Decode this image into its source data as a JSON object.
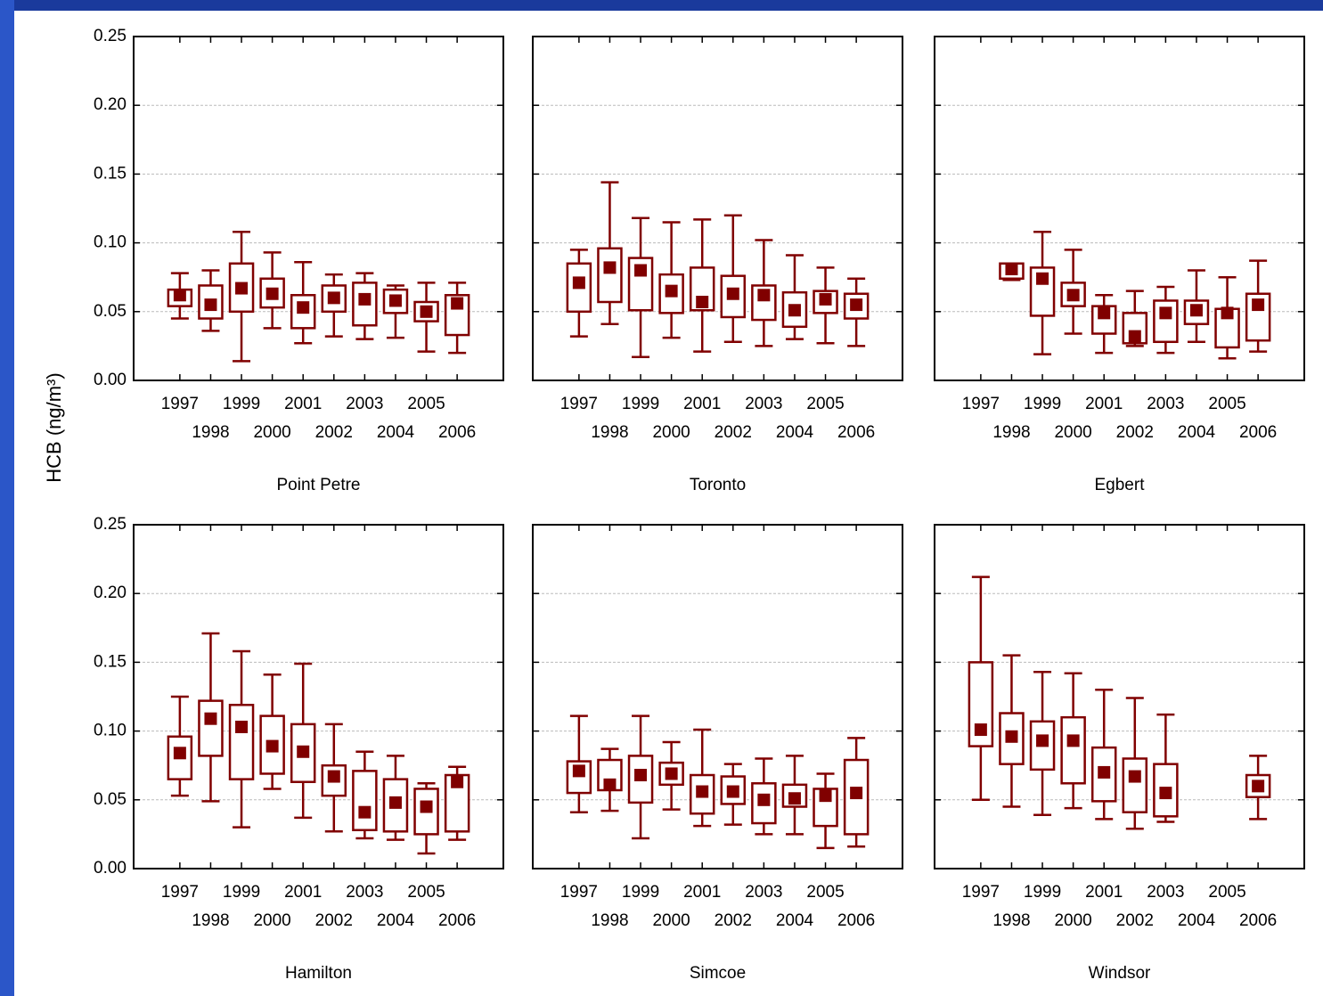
{
  "y_label": "HCB (ng/m³)",
  "chart_data": [
    {
      "type": "box",
      "title": "Point Petre",
      "color": "#800000",
      "grid": true,
      "categories": [
        "1997",
        "1998",
        "1999",
        "2000",
        "2001",
        "2002",
        "2003",
        "2004",
        "2005",
        "2006"
      ],
      "ylim": [
        0,
        0.25
      ],
      "yticks": [
        {
          "value": 0,
          "label": "0.00"
        },
        {
          "value": 0.05,
          "label": "0.05"
        },
        {
          "value": 0.1,
          "label": "0.10"
        },
        {
          "value": 0.15,
          "label": "0.15"
        },
        {
          "value": 0.2,
          "label": "0.20"
        },
        {
          "value": 0.25,
          "label": "0.25"
        }
      ],
      "low": [
        0.045,
        0.036,
        0.014,
        0.038,
        0.027,
        0.032,
        0.03,
        0.031,
        0.021,
        0.02
      ],
      "q1": [
        0.054,
        0.045,
        0.05,
        0.053,
        0.038,
        0.05,
        0.04,
        0.049,
        0.043,
        0.033
      ],
      "mid": [
        0.062,
        0.055,
        0.067,
        0.063,
        0.053,
        0.06,
        0.059,
        0.058,
        0.05,
        0.056
      ],
      "q3": [
        0.066,
        0.069,
        0.085,
        0.074,
        0.062,
        0.069,
        0.071,
        0.066,
        0.057,
        0.062
      ],
      "high": [
        0.078,
        0.08,
        0.108,
        0.093,
        0.086,
        0.077,
        0.078,
        0.069,
        0.071,
        0.071
      ]
    },
    {
      "type": "box",
      "title": "Toronto",
      "color": "#800000",
      "grid": true,
      "categories": [
        "1997",
        "1998",
        "1999",
        "2000",
        "2001",
        "2002",
        "2003",
        "2004",
        "2005",
        "2006"
      ],
      "ylim": [
        0,
        0.25
      ],
      "yticks": [
        0,
        0.05,
        0.1,
        0.15,
        0.2,
        0.25
      ],
      "low": [
        0.032,
        0.041,
        0.017,
        0.031,
        0.021,
        0.028,
        0.025,
        0.03,
        0.027,
        0.025
      ],
      "q1": [
        0.05,
        0.057,
        0.051,
        0.049,
        0.051,
        0.046,
        0.044,
        0.039,
        0.049,
        0.045
      ],
      "mid": [
        0.071,
        0.082,
        0.08,
        0.065,
        0.057,
        0.063,
        0.062,
        0.051,
        0.059,
        0.055
      ],
      "q3": [
        0.085,
        0.096,
        0.089,
        0.077,
        0.082,
        0.076,
        0.069,
        0.064,
        0.065,
        0.063
      ],
      "high": [
        0.095,
        0.144,
        0.118,
        0.115,
        0.117,
        0.12,
        0.102,
        0.091,
        0.082,
        0.074
      ]
    },
    {
      "type": "box",
      "title": "Egbert",
      "color": "#800000",
      "grid": true,
      "categories": [
        "1997",
        "1998",
        "1999",
        "2000",
        "2001",
        "2002",
        "2003",
        "2004",
        "2005",
        "2006"
      ],
      "ylim": [
        0,
        0.25
      ],
      "yticks": [
        0,
        0.05,
        0.1,
        0.15,
        0.2,
        0.25
      ],
      "low": [
        null,
        0.073,
        0.019,
        0.034,
        0.02,
        0.025,
        0.02,
        0.028,
        0.016,
        0.021
      ],
      "q1": [
        null,
        0.074,
        0.047,
        0.054,
        0.034,
        0.027,
        0.028,
        0.041,
        0.024,
        0.029
      ],
      "mid": [
        null,
        0.081,
        0.074,
        0.062,
        0.049,
        0.032,
        0.049,
        0.051,
        0.049,
        0.055
      ],
      "q3": [
        null,
        0.085,
        0.082,
        0.071,
        0.054,
        0.049,
        0.058,
        0.058,
        0.052,
        0.063
      ],
      "high": [
        null,
        0.085,
        0.108,
        0.095,
        0.062,
        0.065,
        0.068,
        0.08,
        0.075,
        0.087
      ]
    },
    {
      "type": "box",
      "title": "Hamilton",
      "color": "#800000",
      "grid": true,
      "categories": [
        "1997",
        "1998",
        "1999",
        "2000",
        "2001",
        "2002",
        "2003",
        "2004",
        "2005",
        "2006"
      ],
      "ylim": [
        0,
        0.25
      ],
      "yticks": [
        {
          "value": 0,
          "label": "0.00"
        },
        {
          "value": 0.05,
          "label": "0.05"
        },
        {
          "value": 0.1,
          "label": "0.10"
        },
        {
          "value": 0.15,
          "label": "0.15"
        },
        {
          "value": 0.2,
          "label": "0.20"
        },
        {
          "value": 0.25,
          "label": "0.25"
        }
      ],
      "low": [
        0.053,
        0.049,
        0.03,
        0.058,
        0.037,
        0.027,
        0.022,
        0.021,
        0.011,
        0.021
      ],
      "q1": [
        0.065,
        0.082,
        0.065,
        0.069,
        0.063,
        0.053,
        0.028,
        0.027,
        0.025,
        0.027
      ],
      "mid": [
        0.084,
        0.109,
        0.103,
        0.089,
        0.085,
        0.067,
        0.041,
        0.048,
        0.045,
        0.063
      ],
      "q3": [
        0.096,
        0.122,
        0.119,
        0.111,
        0.105,
        0.075,
        0.071,
        0.065,
        0.058,
        0.068
      ],
      "high": [
        0.125,
        0.171,
        0.158,
        0.141,
        0.149,
        0.105,
        0.085,
        0.082,
        0.062,
        0.074
      ]
    },
    {
      "type": "box",
      "title": "Simcoe",
      "color": "#800000",
      "grid": true,
      "categories": [
        "1997",
        "1998",
        "1999",
        "2000",
        "2001",
        "2002",
        "2003",
        "2004",
        "2005",
        "2006"
      ],
      "ylim": [
        0,
        0.25
      ],
      "yticks": [
        0,
        0.05,
        0.1,
        0.15,
        0.2,
        0.25
      ],
      "low": [
        0.041,
        0.042,
        0.022,
        0.043,
        0.031,
        0.032,
        0.025,
        0.025,
        0.015,
        0.016
      ],
      "q1": [
        0.055,
        0.057,
        0.048,
        0.061,
        0.04,
        0.047,
        0.033,
        0.045,
        0.031,
        0.025
      ],
      "mid": [
        0.071,
        0.061,
        0.068,
        0.069,
        0.056,
        0.056,
        0.05,
        0.051,
        0.053,
        0.055
      ],
      "q3": [
        0.078,
        0.079,
        0.082,
        0.077,
        0.068,
        0.067,
        0.062,
        0.061,
        0.058,
        0.079
      ],
      "high": [
        0.111,
        0.087,
        0.111,
        0.092,
        0.101,
        0.076,
        0.08,
        0.082,
        0.069,
        0.095
      ]
    },
    {
      "type": "box",
      "title": "Windsor",
      "color": "#800000",
      "grid": true,
      "categories": [
        "1997",
        "1998",
        "1999",
        "2000",
        "2001",
        "2002",
        "2003",
        "2004",
        "2005",
        "2006"
      ],
      "ylim": [
        0,
        0.25
      ],
      "yticks": [
        0,
        0.05,
        0.1,
        0.15,
        0.2,
        0.25
      ],
      "low": [
        0.05,
        0.045,
        0.039,
        0.044,
        0.036,
        0.029,
        0.034,
        null,
        null,
        0.036
      ],
      "q1": [
        0.089,
        0.076,
        0.072,
        0.062,
        0.049,
        0.041,
        0.038,
        null,
        null,
        0.052
      ],
      "mid": [
        0.101,
        0.096,
        0.093,
        0.093,
        0.07,
        0.067,
        0.055,
        null,
        null,
        0.06
      ],
      "q3": [
        0.15,
        0.113,
        0.107,
        0.11,
        0.088,
        0.08,
        0.076,
        null,
        null,
        0.068
      ],
      "high": [
        0.212,
        0.155,
        0.143,
        0.142,
        0.13,
        0.124,
        0.112,
        null,
        null,
        0.082
      ]
    }
  ]
}
